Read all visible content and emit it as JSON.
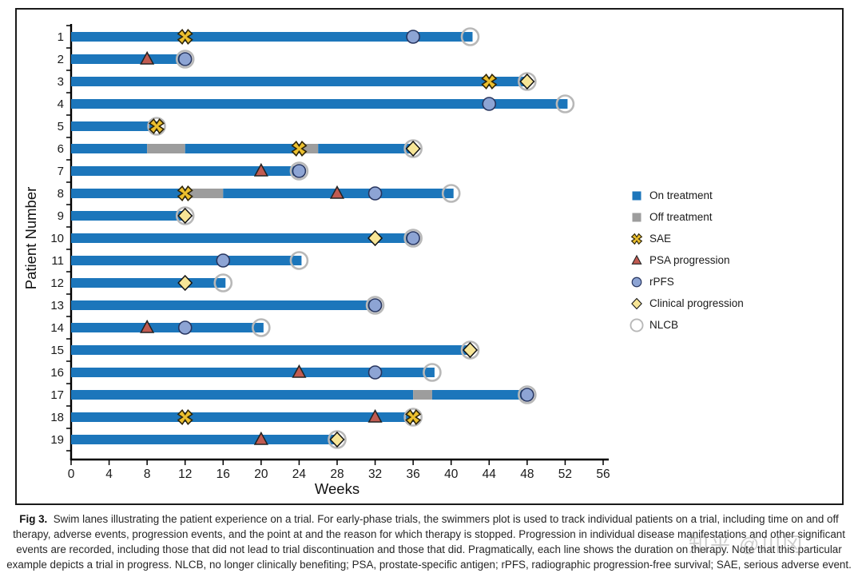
{
  "chart_data": {
    "type": "swimmer-bar",
    "title": "",
    "xlabel": "Weeks",
    "ylabel": "Patient Number",
    "xlim": [
      0,
      56
    ],
    "x_ticks": [
      0,
      4,
      8,
      12,
      16,
      20,
      24,
      28,
      32,
      36,
      40,
      44,
      48,
      52,
      56
    ],
    "grid": false,
    "legend_position": "right-outside",
    "colors": {
      "on_treatment": "#1c76bb",
      "off_treatment": "#9d9d9d",
      "sae_fill": "#ecc02f",
      "sae_stroke": "#2f2508",
      "psa_fill": "#c15b51",
      "psa_stroke": "#222222",
      "rpfs_fill": "#8da4d4",
      "rpfs_stroke": "#27355f",
      "clinical_fill": "#f7e596",
      "clinical_stroke": "#141414",
      "nlcb_ring": "#b8b8b8",
      "axis": "#000000"
    },
    "legend": [
      {
        "key": "on",
        "label": "On treatment"
      },
      {
        "key": "off",
        "label": "Off treatment"
      },
      {
        "key": "SAE",
        "label": "SAE"
      },
      {
        "key": "PSA",
        "label": "PSA progression"
      },
      {
        "key": "rPFS",
        "label": "rPFS"
      },
      {
        "key": "Clinical",
        "label": "Clinical progression"
      },
      {
        "key": "NLCB",
        "label": "NLCB"
      }
    ],
    "patients": [
      {
        "id": "1",
        "segments": [
          {
            "state": "on",
            "start": 0,
            "end": 42
          }
        ],
        "events": [
          {
            "type": "SAE",
            "week": 12
          },
          {
            "type": "rPFS",
            "week": 36
          },
          {
            "type": "NLCB",
            "week": 42
          }
        ]
      },
      {
        "id": "2",
        "segments": [
          {
            "state": "on",
            "start": 0,
            "end": 12
          }
        ],
        "events": [
          {
            "type": "PSA",
            "week": 8
          },
          {
            "type": "rPFS",
            "week": 12
          },
          {
            "type": "NLCB",
            "week": 12
          }
        ]
      },
      {
        "id": "3",
        "segments": [
          {
            "state": "on",
            "start": 0,
            "end": 48
          }
        ],
        "events": [
          {
            "type": "SAE",
            "week": 44
          },
          {
            "type": "Clinical",
            "week": 48
          },
          {
            "type": "NLCB",
            "week": 48
          }
        ]
      },
      {
        "id": "4",
        "segments": [
          {
            "state": "on",
            "start": 0,
            "end": 52
          }
        ],
        "events": [
          {
            "type": "rPFS",
            "week": 44
          },
          {
            "type": "NLCB",
            "week": 52
          }
        ]
      },
      {
        "id": "5",
        "segments": [
          {
            "state": "on",
            "start": 0,
            "end": 9
          }
        ],
        "events": [
          {
            "type": "SAE",
            "week": 9
          },
          {
            "type": "NLCB",
            "week": 9
          }
        ]
      },
      {
        "id": "6",
        "segments": [
          {
            "state": "on",
            "start": 0,
            "end": 8
          },
          {
            "state": "off",
            "start": 8,
            "end": 12
          },
          {
            "state": "on",
            "start": 12,
            "end": 24
          },
          {
            "state": "off",
            "start": 24,
            "end": 26
          },
          {
            "state": "on",
            "start": 26,
            "end": 36
          }
        ],
        "events": [
          {
            "type": "SAE",
            "week": 24
          },
          {
            "type": "Clinical",
            "week": 36
          },
          {
            "type": "NLCB",
            "week": 36
          }
        ]
      },
      {
        "id": "7",
        "segments": [
          {
            "state": "on",
            "start": 0,
            "end": 24
          }
        ],
        "events": [
          {
            "type": "PSA",
            "week": 20
          },
          {
            "type": "rPFS",
            "week": 24
          },
          {
            "type": "NLCB",
            "week": 24
          }
        ]
      },
      {
        "id": "8",
        "segments": [
          {
            "state": "on",
            "start": 0,
            "end": 12
          },
          {
            "state": "off",
            "start": 12,
            "end": 16
          },
          {
            "state": "on",
            "start": 16,
            "end": 40
          }
        ],
        "events": [
          {
            "type": "SAE",
            "week": 12
          },
          {
            "type": "PSA",
            "week": 28
          },
          {
            "type": "rPFS",
            "week": 32
          },
          {
            "type": "NLCB",
            "week": 40
          }
        ]
      },
      {
        "id": "9",
        "segments": [
          {
            "state": "on",
            "start": 0,
            "end": 12
          }
        ],
        "events": [
          {
            "type": "Clinical",
            "week": 12
          },
          {
            "type": "NLCB",
            "week": 12
          }
        ]
      },
      {
        "id": "10",
        "segments": [
          {
            "state": "on",
            "start": 0,
            "end": 36
          }
        ],
        "events": [
          {
            "type": "Clinical",
            "week": 32
          },
          {
            "type": "rPFS",
            "week": 36
          },
          {
            "type": "NLCB",
            "week": 36
          }
        ]
      },
      {
        "id": "11",
        "segments": [
          {
            "state": "on",
            "start": 0,
            "end": 24
          }
        ],
        "events": [
          {
            "type": "rPFS",
            "week": 16
          },
          {
            "type": "NLCB",
            "week": 24
          }
        ]
      },
      {
        "id": "12",
        "segments": [
          {
            "state": "on",
            "start": 0,
            "end": 16
          }
        ],
        "events": [
          {
            "type": "Clinical",
            "week": 12
          },
          {
            "type": "NLCB",
            "week": 16
          }
        ]
      },
      {
        "id": "13",
        "segments": [
          {
            "state": "on",
            "start": 0,
            "end": 32
          }
        ],
        "events": [
          {
            "type": "rPFS",
            "week": 32
          },
          {
            "type": "NLCB",
            "week": 32
          }
        ]
      },
      {
        "id": "14",
        "segments": [
          {
            "state": "on",
            "start": 0,
            "end": 20
          }
        ],
        "events": [
          {
            "type": "PSA",
            "week": 8
          },
          {
            "type": "rPFS",
            "week": 12
          },
          {
            "type": "NLCB",
            "week": 20
          }
        ]
      },
      {
        "id": "15",
        "segments": [
          {
            "state": "on",
            "start": 0,
            "end": 42
          }
        ],
        "events": [
          {
            "type": "Clinical",
            "week": 42
          },
          {
            "type": "NLCB",
            "week": 42
          }
        ]
      },
      {
        "id": "16",
        "segments": [
          {
            "state": "on",
            "start": 0,
            "end": 38
          }
        ],
        "events": [
          {
            "type": "PSA",
            "week": 24
          },
          {
            "type": "rPFS",
            "week": 32
          },
          {
            "type": "NLCB",
            "week": 38
          }
        ]
      },
      {
        "id": "17",
        "segments": [
          {
            "state": "on",
            "start": 0,
            "end": 36
          },
          {
            "state": "off",
            "start": 36,
            "end": 38
          },
          {
            "state": "on",
            "start": 38,
            "end": 48
          }
        ],
        "events": [
          {
            "type": "rPFS",
            "week": 48
          },
          {
            "type": "NLCB",
            "week": 48
          }
        ]
      },
      {
        "id": "18",
        "segments": [
          {
            "state": "on",
            "start": 0,
            "end": 36
          }
        ],
        "events": [
          {
            "type": "SAE",
            "week": 12
          },
          {
            "type": "PSA",
            "week": 32
          },
          {
            "type": "SAE",
            "week": 36
          },
          {
            "type": "NLCB",
            "week": 36
          }
        ]
      },
      {
        "id": "19",
        "segments": [
          {
            "state": "on",
            "start": 0,
            "end": 28
          }
        ],
        "events": [
          {
            "type": "PSA",
            "week": 20
          },
          {
            "type": "Clinical",
            "week": 28
          },
          {
            "type": "NLCB",
            "week": 28
          }
        ]
      }
    ]
  },
  "caption": {
    "label": "Fig 3.",
    "line1": "Swim lanes illustrating the patient experience on a trial. For early-phase trials, the swimmers plot is used to track individual patients on a trial, including time on and off",
    "line2": "therapy, adverse events, progression events, and the point at and the reason for which therapy is stopped. Progression in individual disease manifestations and other significant",
    "line3": "events are recorded, including those that did not lead to trial discontinuation and those that did. Pragmatically, each line shows the duration on therapy. Note that this particular",
    "line4": "example depicts a trial in progress. NLCB, no longer clinically benefiting; PSA, prostate-specific antigen; rPFS, radiographic progression-free survival; SAE, serious adverse event."
  },
  "watermark": "知乎 @川冈"
}
